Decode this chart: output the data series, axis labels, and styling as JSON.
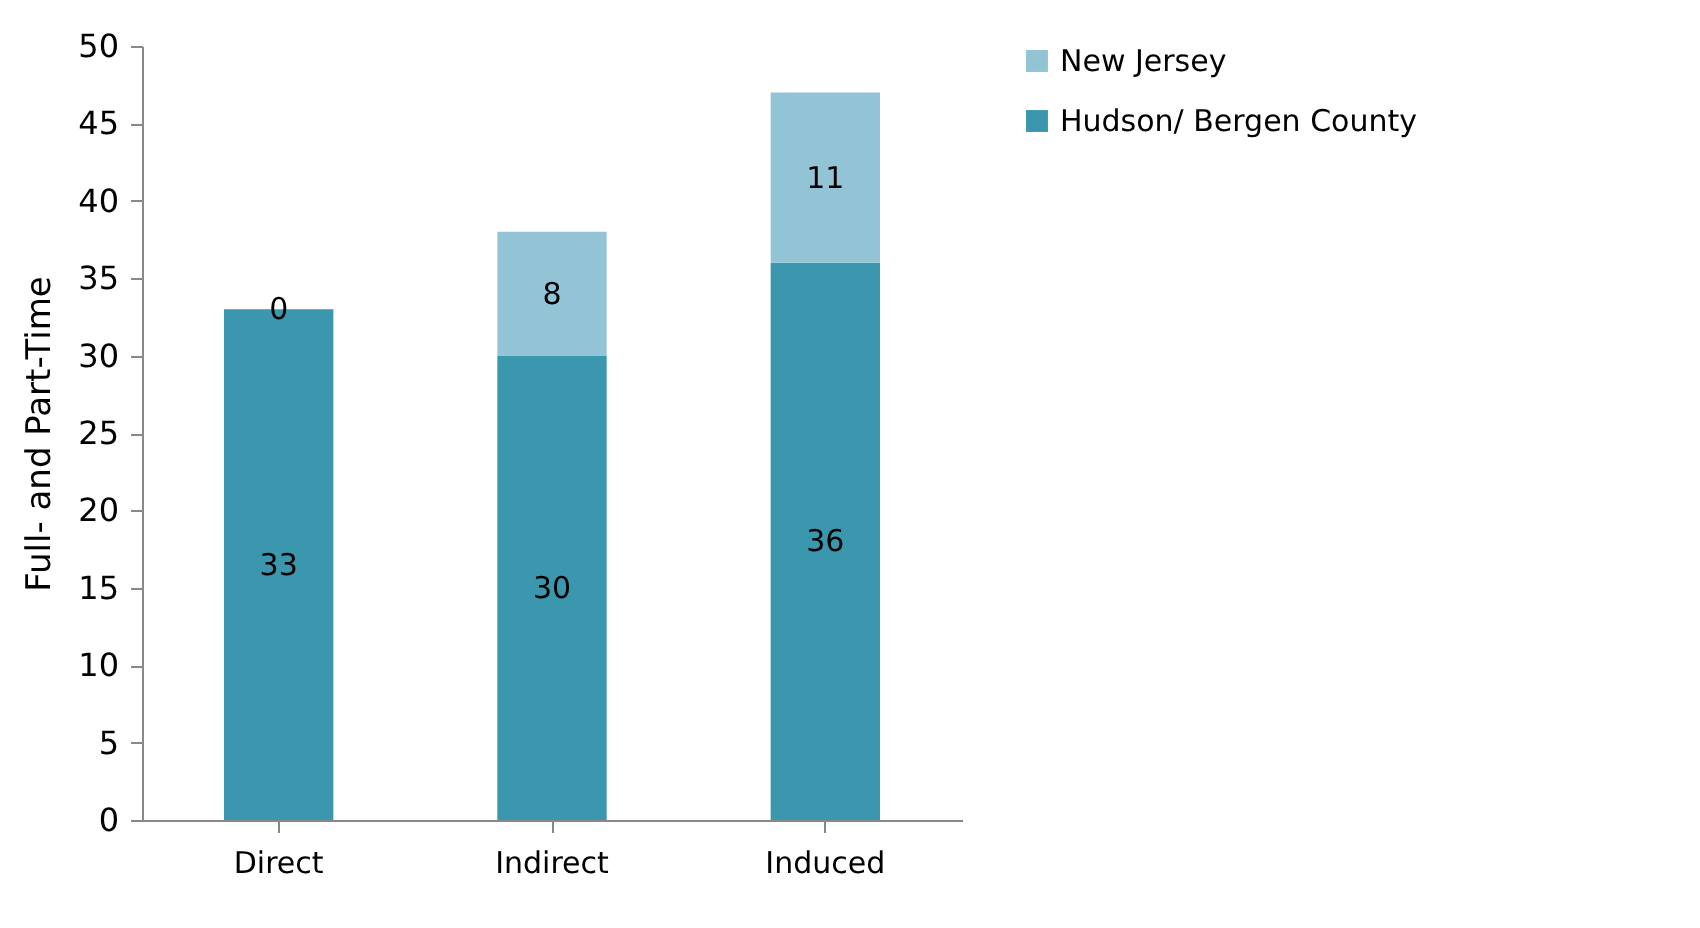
{
  "chart_data": {
    "type": "bar",
    "stacked": true,
    "ylabel": "Full- and Part-Time",
    "categories": [
      "Direct",
      "Indirect",
      "Induced"
    ],
    "series": [
      {
        "name": "Hudson/ Bergen County",
        "color": "#3b97ad",
        "values": [
          33,
          30,
          36
        ]
      },
      {
        "name": "New Jersey",
        "color": "#93c4d5",
        "values": [
          0,
          8,
          11
        ]
      }
    ],
    "ylim": [
      0,
      50
    ],
    "yticks": [
      0,
      5,
      10,
      15,
      20,
      25,
      30,
      35,
      40,
      45,
      50
    ],
    "grid": false,
    "legend": "right",
    "data_labels": true
  }
}
